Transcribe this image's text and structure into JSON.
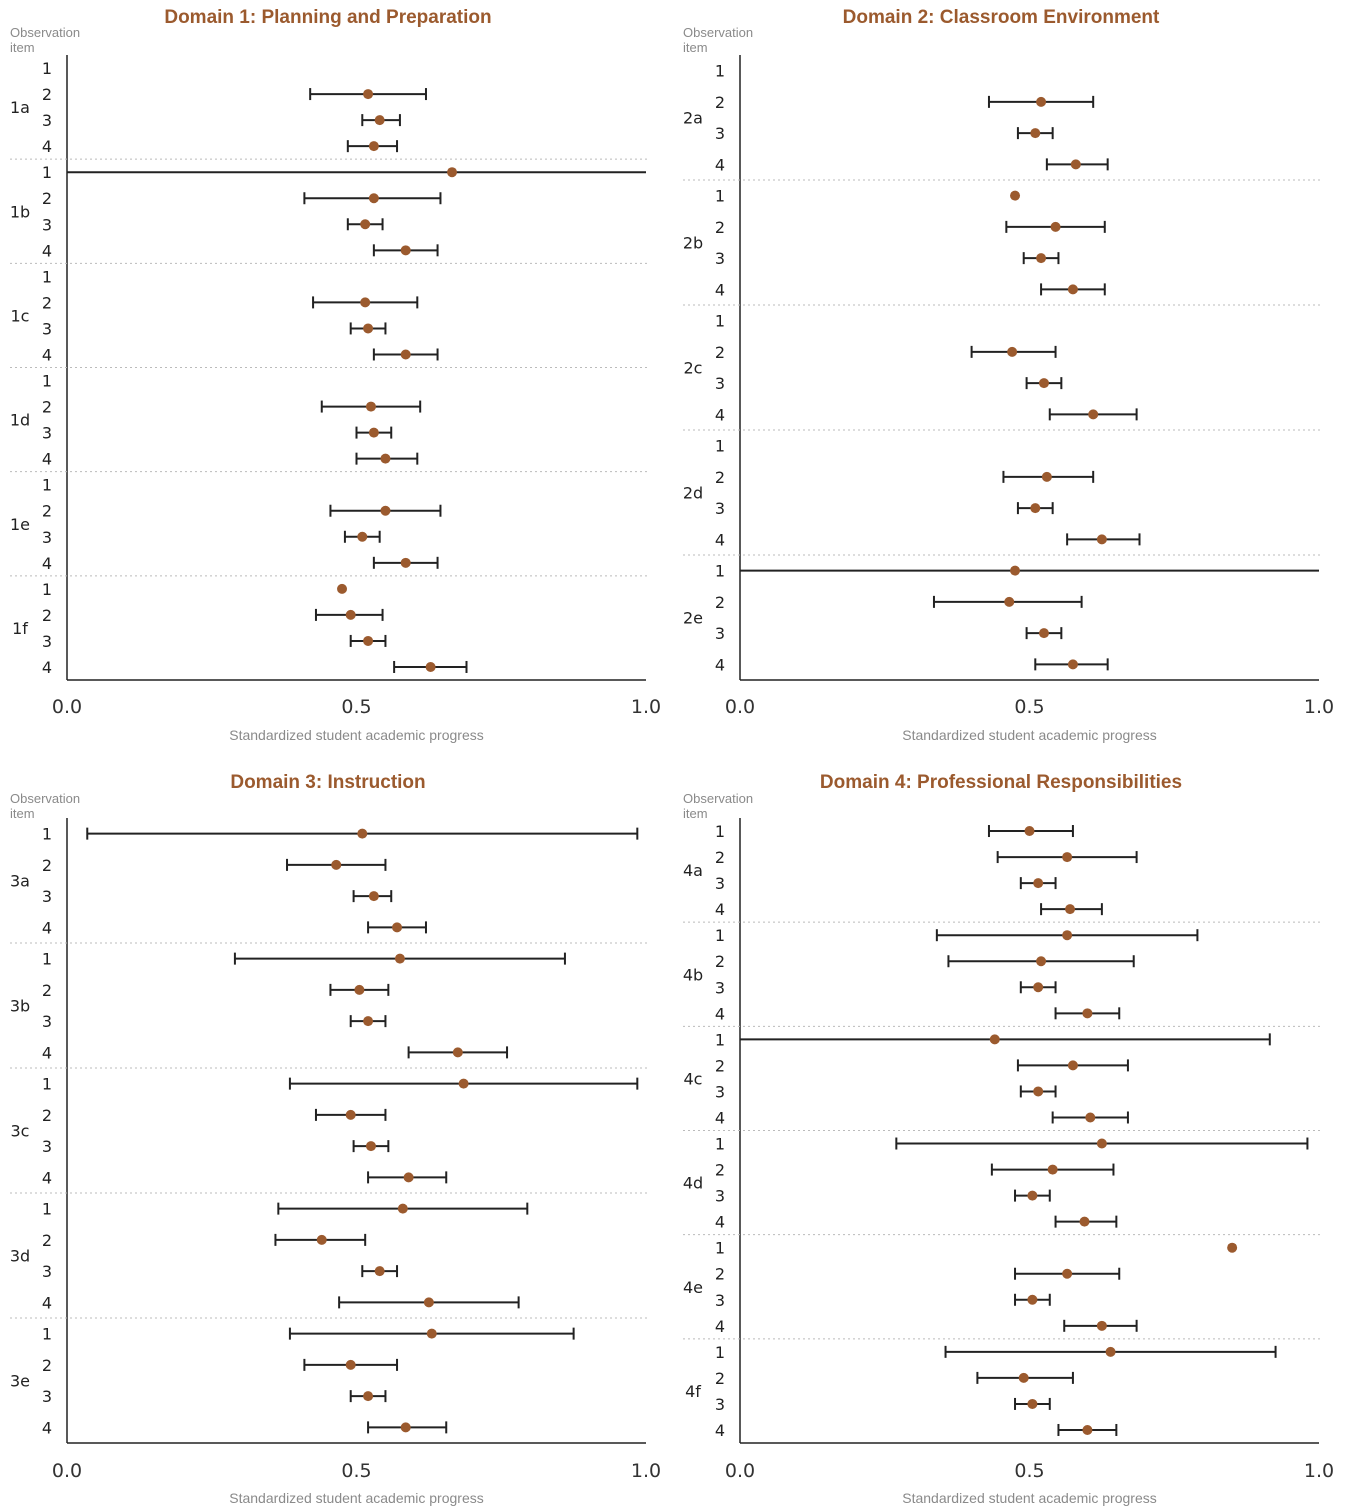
{
  "colors": {
    "title": "#9b5a2e",
    "point": "#9b5a2e",
    "errorbar": "#222222",
    "separator": "#bbbbbb",
    "label": "#8a8a8a"
  },
  "chart_data": [
    {
      "type": "scatter",
      "title": "Domain 1: Planning and Preparation",
      "ylabel": "Observation item",
      "xlabel": "Standardized student academic progress",
      "xlim": [
        0.0,
        1.0
      ],
      "xticks": [
        "0.0",
        "0.5",
        "1.0"
      ],
      "groups": [
        {
          "label": "1a",
          "items": [
            {
              "item": "1",
              "value": null,
              "ci": null
            },
            {
              "item": "2",
              "value": 0.52,
              "ci": [
                0.42,
                0.62
              ]
            },
            {
              "item": "3",
              "value": 0.54,
              "ci": [
                0.51,
                0.575
              ]
            },
            {
              "item": "4",
              "value": 0.53,
              "ci": [
                0.485,
                0.57
              ]
            }
          ]
        },
        {
          "label": "1b",
          "items": [
            {
              "item": "1",
              "value": 0.665,
              "ci": [
                0.0,
                1.0
              ]
            },
            {
              "item": "2",
              "value": 0.53,
              "ci": [
                0.41,
                0.645
              ]
            },
            {
              "item": "3",
              "value": 0.515,
              "ci": [
                0.485,
                0.545
              ]
            },
            {
              "item": "4",
              "value": 0.585,
              "ci": [
                0.53,
                0.64
              ]
            }
          ]
        },
        {
          "label": "1c",
          "items": [
            {
              "item": "1",
              "value": null,
              "ci": null
            },
            {
              "item": "2",
              "value": 0.515,
              "ci": [
                0.425,
                0.605
              ]
            },
            {
              "item": "3",
              "value": 0.52,
              "ci": [
                0.49,
                0.55
              ]
            },
            {
              "item": "4",
              "value": 0.585,
              "ci": [
                0.53,
                0.64
              ]
            }
          ]
        },
        {
          "label": "1d",
          "items": [
            {
              "item": "1",
              "value": null,
              "ci": null
            },
            {
              "item": "2",
              "value": 0.525,
              "ci": [
                0.44,
                0.61
              ]
            },
            {
              "item": "3",
              "value": 0.53,
              "ci": [
                0.5,
                0.56
              ]
            },
            {
              "item": "4",
              "value": 0.55,
              "ci": [
                0.5,
                0.605
              ]
            }
          ]
        },
        {
          "label": "1e",
          "items": [
            {
              "item": "1",
              "value": null,
              "ci": null
            },
            {
              "item": "2",
              "value": 0.55,
              "ci": [
                0.455,
                0.645
              ]
            },
            {
              "item": "3",
              "value": 0.51,
              "ci": [
                0.48,
                0.54
              ]
            },
            {
              "item": "4",
              "value": 0.585,
              "ci": [
                0.53,
                0.64
              ]
            }
          ]
        },
        {
          "label": "1f",
          "items": [
            {
              "item": "1",
              "value": 0.475,
              "ci": null
            },
            {
              "item": "2",
              "value": 0.49,
              "ci": [
                0.43,
                0.545
              ]
            },
            {
              "item": "3",
              "value": 0.52,
              "ci": [
                0.49,
                0.55
              ]
            },
            {
              "item": "4",
              "value": 0.628,
              "ci": [
                0.565,
                0.69
              ]
            }
          ]
        }
      ]
    },
    {
      "type": "scatter",
      "title": "Domain 2: Classroom Environment",
      "ylabel": "Observation item",
      "xlabel": "Standardized student academic progress",
      "xlim": [
        0.0,
        1.0
      ],
      "xticks": [
        "0.0",
        "0.5",
        "1.0"
      ],
      "groups": [
        {
          "label": "2a",
          "items": [
            {
              "item": "1",
              "value": null,
              "ci": null
            },
            {
              "item": "2",
              "value": 0.52,
              "ci": [
                0.43,
                0.61
              ]
            },
            {
              "item": "3",
              "value": 0.51,
              "ci": [
                0.48,
                0.54
              ]
            },
            {
              "item": "4",
              "value": 0.58,
              "ci": [
                0.53,
                0.635
              ]
            }
          ]
        },
        {
          "label": "2b",
          "items": [
            {
              "item": "1",
              "value": 0.475,
              "ci": null
            },
            {
              "item": "2",
              "value": 0.545,
              "ci": [
                0.46,
                0.63
              ]
            },
            {
              "item": "3",
              "value": 0.52,
              "ci": [
                0.49,
                0.55
              ]
            },
            {
              "item": "4",
              "value": 0.575,
              "ci": [
                0.52,
                0.63
              ]
            }
          ]
        },
        {
          "label": "2c",
          "items": [
            {
              "item": "1",
              "value": null,
              "ci": null
            },
            {
              "item": "2",
              "value": 0.47,
              "ci": [
                0.4,
                0.545
              ]
            },
            {
              "item": "3",
              "value": 0.525,
              "ci": [
                0.495,
                0.555
              ]
            },
            {
              "item": "4",
              "value": 0.61,
              "ci": [
                0.535,
                0.685
              ]
            }
          ]
        },
        {
          "label": "2d",
          "items": [
            {
              "item": "1",
              "value": null,
              "ci": null
            },
            {
              "item": "2",
              "value": 0.53,
              "ci": [
                0.455,
                0.61
              ]
            },
            {
              "item": "3",
              "value": 0.51,
              "ci": [
                0.48,
                0.54
              ]
            },
            {
              "item": "4",
              "value": 0.625,
              "ci": [
                0.565,
                0.69
              ]
            }
          ]
        },
        {
          "label": "2e",
          "items": [
            {
              "item": "1",
              "value": 0.475,
              "ci": [
                0.0,
                1.0
              ]
            },
            {
              "item": "2",
              "value": 0.465,
              "ci": [
                0.335,
                0.59
              ]
            },
            {
              "item": "3",
              "value": 0.525,
              "ci": [
                0.495,
                0.555
              ]
            },
            {
              "item": "4",
              "value": 0.575,
              "ci": [
                0.51,
                0.635
              ]
            }
          ]
        }
      ]
    },
    {
      "type": "scatter",
      "title": "Domain 3: Instruction",
      "ylabel": "Observation item",
      "xlabel": "Standardized student academic progress",
      "xlim": [
        0.0,
        1.0
      ],
      "xticks": [
        "0.0",
        "0.5",
        "1.0"
      ],
      "groups": [
        {
          "label": "3a",
          "items": [
            {
              "item": "1",
              "value": 0.51,
              "ci": [
                0.035,
                0.985
              ]
            },
            {
              "item": "2",
              "value": 0.465,
              "ci": [
                0.38,
                0.55
              ]
            },
            {
              "item": "3",
              "value": 0.53,
              "ci": [
                0.495,
                0.56
              ]
            },
            {
              "item": "4",
              "value": 0.57,
              "ci": [
                0.52,
                0.62
              ]
            }
          ]
        },
        {
          "label": "3b",
          "items": [
            {
              "item": "1",
              "value": 0.575,
              "ci": [
                0.29,
                0.86
              ]
            },
            {
              "item": "2",
              "value": 0.505,
              "ci": [
                0.455,
                0.555
              ]
            },
            {
              "item": "3",
              "value": 0.52,
              "ci": [
                0.49,
                0.55
              ]
            },
            {
              "item": "4",
              "value": 0.675,
              "ci": [
                0.59,
                0.76
              ]
            }
          ]
        },
        {
          "label": "3c",
          "items": [
            {
              "item": "1",
              "value": 0.685,
              "ci": [
                0.385,
                0.985
              ]
            },
            {
              "item": "2",
              "value": 0.49,
              "ci": [
                0.43,
                0.55
              ]
            },
            {
              "item": "3",
              "value": 0.525,
              "ci": [
                0.495,
                0.555
              ]
            },
            {
              "item": "4",
              "value": 0.59,
              "ci": [
                0.52,
                0.655
              ]
            }
          ]
        },
        {
          "label": "3d",
          "items": [
            {
              "item": "1",
              "value": 0.58,
              "ci": [
                0.365,
                0.795
              ]
            },
            {
              "item": "2",
              "value": 0.44,
              "ci": [
                0.36,
                0.515
              ]
            },
            {
              "item": "3",
              "value": 0.54,
              "ci": [
                0.51,
                0.57
              ]
            },
            {
              "item": "4",
              "value": 0.625,
              "ci": [
                0.47,
                0.78
              ]
            }
          ]
        },
        {
          "label": "3e",
          "items": [
            {
              "item": "1",
              "value": 0.63,
              "ci": [
                0.385,
                0.875
              ]
            },
            {
              "item": "2",
              "value": 0.49,
              "ci": [
                0.41,
                0.57
              ]
            },
            {
              "item": "3",
              "value": 0.52,
              "ci": [
                0.49,
                0.55
              ]
            },
            {
              "item": "4",
              "value": 0.585,
              "ci": [
                0.52,
                0.655
              ]
            }
          ]
        }
      ]
    },
    {
      "type": "scatter",
      "title": "Domain 4: Professional Responsibilities",
      "ylabel": "Observation item",
      "xlabel": "Standardized student academic progress",
      "xlim": [
        0.0,
        1.0
      ],
      "xticks": [
        "0.0",
        "0.5",
        "1.0"
      ],
      "groups": [
        {
          "label": "4a",
          "items": [
            {
              "item": "1",
              "value": 0.5,
              "ci": [
                0.43,
                0.575
              ]
            },
            {
              "item": "2",
              "value": 0.565,
              "ci": [
                0.445,
                0.685
              ]
            },
            {
              "item": "3",
              "value": 0.515,
              "ci": [
                0.485,
                0.545
              ]
            },
            {
              "item": "4",
              "value": 0.57,
              "ci": [
                0.52,
                0.625
              ]
            }
          ]
        },
        {
          "label": "4b",
          "items": [
            {
              "item": "1",
              "value": 0.565,
              "ci": [
                0.34,
                0.79
              ]
            },
            {
              "item": "2",
              "value": 0.52,
              "ci": [
                0.36,
                0.68
              ]
            },
            {
              "item": "3",
              "value": 0.515,
              "ci": [
                0.485,
                0.545
              ]
            },
            {
              "item": "4",
              "value": 0.6,
              "ci": [
                0.545,
                0.655
              ]
            }
          ]
        },
        {
          "label": "4c",
          "items": [
            {
              "item": "1",
              "value": 0.44,
              "ci": [
                0.0,
                0.915
              ]
            },
            {
              "item": "2",
              "value": 0.575,
              "ci": [
                0.48,
                0.67
              ]
            },
            {
              "item": "3",
              "value": 0.515,
              "ci": [
                0.485,
                0.545
              ]
            },
            {
              "item": "4",
              "value": 0.605,
              "ci": [
                0.54,
                0.67
              ]
            }
          ]
        },
        {
          "label": "4d",
          "items": [
            {
              "item": "1",
              "value": 0.625,
              "ci": [
                0.27,
                0.98
              ]
            },
            {
              "item": "2",
              "value": 0.54,
              "ci": [
                0.435,
                0.645
              ]
            },
            {
              "item": "3",
              "value": 0.505,
              "ci": [
                0.475,
                0.535
              ]
            },
            {
              "item": "4",
              "value": 0.595,
              "ci": [
                0.545,
                0.65
              ]
            }
          ]
        },
        {
          "label": "4e",
          "items": [
            {
              "item": "1",
              "value": 0.85,
              "ci": null
            },
            {
              "item": "2",
              "value": 0.565,
              "ci": [
                0.475,
                0.655
              ]
            },
            {
              "item": "3",
              "value": 0.505,
              "ci": [
                0.475,
                0.535
              ]
            },
            {
              "item": "4",
              "value": 0.625,
              "ci": [
                0.56,
                0.685
              ]
            }
          ]
        },
        {
          "label": "4f",
          "items": [
            {
              "item": "1",
              "value": 0.64,
              "ci": [
                0.355,
                0.925
              ]
            },
            {
              "item": "2",
              "value": 0.49,
              "ci": [
                0.41,
                0.575
              ]
            },
            {
              "item": "3",
              "value": 0.505,
              "ci": [
                0.475,
                0.535
              ]
            },
            {
              "item": "4",
              "value": 0.6,
              "ci": [
                0.55,
                0.65
              ]
            }
          ]
        }
      ]
    }
  ]
}
